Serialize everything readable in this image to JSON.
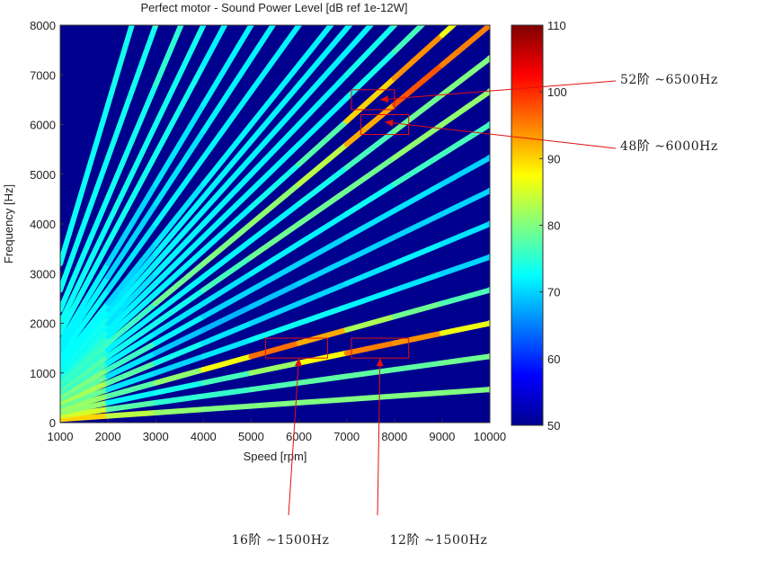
{
  "chart_data": {
    "type": "heatmap",
    "title": "Perfect motor - Sound Power Level [dB ref 1e-12W]",
    "xlabel": "Speed [rpm]",
    "ylabel": "Frequency [Hz]",
    "xlim": [
      1000,
      10000
    ],
    "ylim": [
      0,
      8000
    ],
    "xticks": [
      1000,
      2000,
      3000,
      4000,
      5000,
      6000,
      7000,
      8000,
      9000,
      10000
    ],
    "yticks": [
      0,
      1000,
      2000,
      3000,
      4000,
      5000,
      6000,
      7000,
      8000
    ],
    "colormap": "jet",
    "colorbar": {
      "min": 50,
      "max": 110,
      "ticks": [
        50,
        60,
        70,
        80,
        90,
        100,
        110
      ]
    },
    "background_color": "#00008f",
    "series": [
      {
        "order": 4,
        "levels": [
          95,
          85,
          82,
          80,
          80,
          80,
          80,
          80,
          80,
          80
        ]
      },
      {
        "order": 8,
        "levels": [
          90,
          80,
          75,
          75,
          76,
          78,
          78,
          78,
          78,
          80
        ]
      },
      {
        "order": 12,
        "levels": [
          90,
          72,
          72,
          75,
          78,
          85,
          90,
          100,
          88,
          85
        ]
      },
      {
        "order": 16,
        "levels": [
          88,
          75,
          80,
          82,
          92,
          100,
          85,
          80,
          78,
          76
        ]
      },
      {
        "order": 20,
        "levels": [
          85,
          72,
          70,
          70,
          72,
          74,
          72,
          72,
          70,
          70
        ]
      },
      {
        "order": 24,
        "levels": [
          85,
          80,
          75,
          72,
          70,
          70,
          70,
          72,
          72,
          70
        ]
      },
      {
        "order": 28,
        "levels": [
          84,
          72,
          70,
          68,
          68,
          70,
          70,
          70,
          70,
          70
        ]
      },
      {
        "order": 32,
        "levels": [
          82,
          78,
          74,
          70,
          70,
          70,
          70,
          72,
          70,
          70
        ]
      },
      {
        "order": 36,
        "levels": [
          80,
          72,
          72,
          70,
          72,
          72,
          72,
          74,
          78,
          75
        ]
      },
      {
        "order": 40,
        "levels": [
          80,
          75,
          72,
          75,
          78,
          80,
          78,
          80,
          82,
          80
        ]
      },
      {
        "order": 44,
        "levels": [
          78,
          72,
          72,
          72,
          72,
          72,
          75,
          78,
          80,
          80
        ]
      },
      {
        "order": 48,
        "levels": [
          78,
          74,
          78,
          80,
          80,
          82,
          85,
          100,
          95,
          95
        ]
      },
      {
        "order": 52,
        "levels": [
          78,
          72,
          72,
          72,
          72,
          75,
          80,
          100,
          88,
          85
        ]
      },
      {
        "order": 56,
        "levels": [
          76,
          72,
          72,
          72,
          72,
          72,
          72,
          75,
          78,
          80
        ]
      },
      {
        "order": 60,
        "levels": [
          76,
          70,
          72,
          72,
          72,
          72,
          72,
          75,
          78,
          80
        ]
      },
      {
        "order": 64,
        "levels": [
          75,
          72,
          72,
          72,
          72,
          72,
          72,
          72,
          72,
          72
        ]
      },
      {
        "order": 68,
        "levels": [
          75,
          70,
          72,
          72,
          72,
          72,
          72,
          72,
          72,
          72
        ]
      },
      {
        "order": 72,
        "levels": [
          75,
          70,
          70,
          72,
          72,
          72,
          72,
          72,
          72,
          72
        ]
      },
      {
        "order": 80,
        "levels": [
          75,
          70,
          72,
          72,
          72,
          72,
          72,
          72,
          72,
          72
        ]
      },
      {
        "order": 88,
        "levels": [
          74,
          70,
          70,
          72,
          72,
          72,
          72,
          72,
          72,
          72
        ]
      },
      {
        "order": 96,
        "levels": [
          74,
          70,
          70,
          72,
          72,
          72,
          72,
          72,
          72,
          72
        ]
      },
      {
        "order": 108,
        "levels": [
          74,
          72,
          75,
          72,
          72,
          72,
          72,
          72,
          72,
          72
        ]
      },
      {
        "order": 120,
        "levels": [
          74,
          72,
          75,
          72,
          72,
          72,
          72,
          72,
          72,
          72
        ]
      },
      {
        "order": 136,
        "levels": [
          74,
          72,
          75,
          75,
          72,
          72,
          72,
          72,
          72,
          72
        ]
      },
      {
        "order": 160,
        "levels": [
          74,
          72,
          75,
          80,
          72,
          72,
          72,
          72,
          72,
          72
        ]
      },
      {
        "order": 192,
        "levels": [
          74,
          72,
          75,
          72,
          72,
          72,
          72,
          72,
          72,
          72
        ]
      }
    ],
    "highlight_boxes": [
      {
        "x": [
          7100,
          8000
        ],
        "y": [
          6300,
          6700
        ],
        "color": "#e01010"
      },
      {
        "x": [
          7300,
          8300
        ],
        "y": [
          5800,
          6200
        ],
        "color": "#e01010"
      },
      {
        "x": [
          5300,
          6600
        ],
        "y": [
          1300,
          1700
        ],
        "color": "#e01010"
      },
      {
        "x": [
          7100,
          8300
        ],
        "y": [
          1300,
          1700
        ],
        "color": "#e01010"
      }
    ],
    "annotations": [
      {
        "text": "52阶 ~6500Hz",
        "arrow_to": [
          7700,
          6500
        ]
      },
      {
        "text": "48阶 ~6000Hz",
        "arrow_to": [
          7800,
          6050
        ]
      },
      {
        "text": "16阶 ~1500Hz",
        "arrow_to": [
          6000,
          1300
        ]
      },
      {
        "text": "12阶 ~1500Hz",
        "arrow_to": [
          7700,
          1300
        ]
      }
    ]
  }
}
